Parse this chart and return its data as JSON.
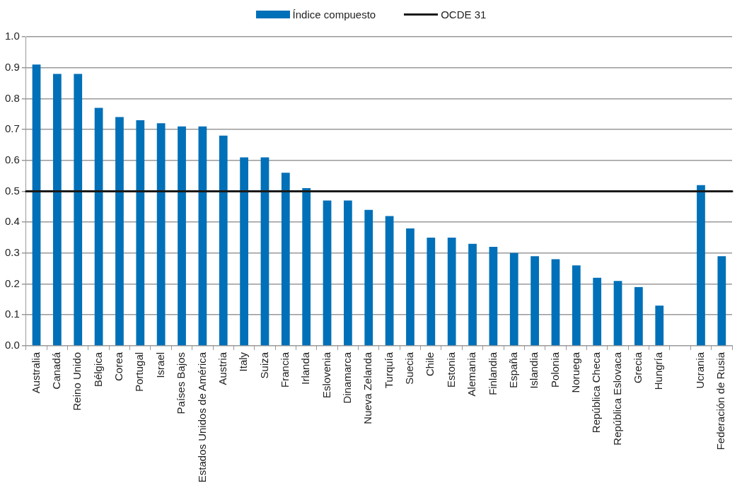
{
  "chart_data": {
    "type": "bar",
    "categories": [
      "Australia",
      "Canadá",
      "Reino Unido",
      "Bélgica",
      "Corea",
      "Portugal",
      "Israel",
      "Países Bajos",
      "Estados Unidos de América",
      "Austria",
      "Italy",
      "Suiza",
      "Francia",
      "Irlanda",
      "Eslovenia",
      "Dinamarca",
      "Nueva Zelanda",
      "Turquía",
      "Suecia",
      "Chile",
      "Estonia",
      "Alemania",
      "Finlandia",
      "España",
      "Islandia",
      "Polonia",
      "Noruega",
      "República Checa",
      "República Eslovaca",
      "Grecia",
      "Hungría",
      null,
      "Ucrania",
      "Federación de Rusia"
    ],
    "series": [
      {
        "name": "Índice compuesto",
        "color": "#0070b8",
        "values": [
          0.91,
          0.88,
          0.88,
          0.77,
          0.74,
          0.73,
          0.72,
          0.71,
          0.71,
          0.68,
          0.61,
          0.61,
          0.56,
          0.51,
          0.47,
          0.47,
          0.44,
          0.42,
          0.38,
          0.35,
          0.35,
          0.33,
          0.32,
          0.3,
          0.29,
          0.28,
          0.26,
          0.22,
          0.21,
          0.19,
          0.13,
          null,
          0.52,
          0.29
        ]
      }
    ],
    "ref_lines": [
      {
        "axis": "y",
        "value": 0.5,
        "label": "OCDE 31",
        "color": "#1a1a1a",
        "line_style": "solid"
      }
    ],
    "ylim": [
      0,
      1.0
    ],
    "yticks": [
      {
        "value": 0,
        "label": "0.0"
      },
      {
        "value": 0.1,
        "label": "0.1"
      },
      {
        "value": 0.2,
        "label": "0.2"
      },
      {
        "value": 0.3,
        "label": "0.3"
      },
      {
        "value": 0.4,
        "label": "0.4"
      },
      {
        "value": 0.5,
        "label": "0.5"
      },
      {
        "value": 0.6,
        "label": "0.6"
      },
      {
        "value": 0.7,
        "label": "0.7"
      },
      {
        "value": 0.8,
        "label": "0.8"
      },
      {
        "value": 0.9,
        "label": "0.9"
      },
      {
        "value": 1.0,
        "label": "1.0"
      }
    ],
    "grid": "y",
    "legend": "top"
  }
}
